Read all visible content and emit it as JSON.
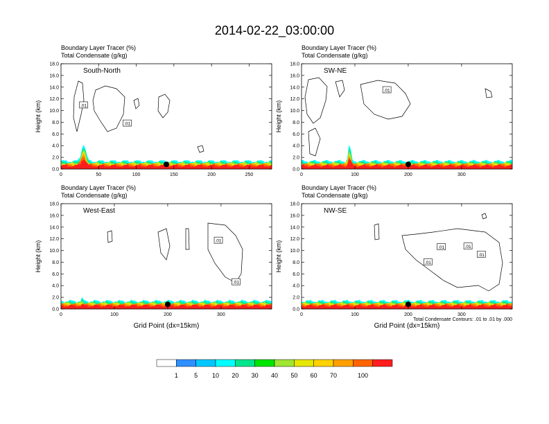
{
  "title": "2014-02-22_03:00:00",
  "colors": {
    "levels": [
      "#ffffff",
      "#2f8fff",
      "#00c8ff",
      "#00ffff",
      "#00e68c",
      "#00e600",
      "#a0e632",
      "#e6e600",
      "#ffd200",
      "#ffa000",
      "#ff6400",
      "#ff1e1e"
    ]
  },
  "footnote": "Total Condensate Contours: .01 to .01 by .000",
  "colorbar": {
    "labels": [
      "1",
      "5",
      "10",
      "20",
      "30",
      "40",
      "50",
      "60",
      "70",
      "100"
    ]
  },
  "chart_data": [
    {
      "type": "heatmap",
      "panel_label": "South-North",
      "title_line1": "Boundary Layer Tracer   (%)",
      "title_line2": "Total Condensate   (g/kg)",
      "ylabel": "Height (km)",
      "xlabel": "",
      "yticks": [
        "0.0",
        "2.0",
        "4.0",
        "6.0",
        "8.0",
        "10.0",
        "12.0",
        "14.0",
        "16.0",
        "18.0"
      ],
      "ylim": [
        0,
        18
      ],
      "xticks": [
        {
          "v": 0,
          "label": "0"
        },
        {
          "v": 50,
          "label": "50"
        },
        {
          "v": 100,
          "label": "100"
        },
        {
          "v": 150,
          "label": "150"
        },
        {
          "v": 200,
          "label": "200"
        },
        {
          "v": 250,
          "label": "250"
        }
      ],
      "xlim": [
        0,
        280
      ],
      "contour_labels": [
        {
          "x": 30,
          "y": 10.9,
          "label": ".01"
        },
        {
          "x": 88,
          "y": 7.8,
          "label": ".01"
        }
      ],
      "marker_x": 140,
      "marker_y": 0.8
    },
    {
      "type": "heatmap",
      "panel_label": "SW-NE",
      "title_line1": "Boundary Layer Tracer   (%)",
      "title_line2": "Total Condensate   (g/kg)",
      "ylabel": "Height (km)",
      "xlabel": "",
      "yticks": [
        "0.0",
        "2.0",
        "4.0",
        "6.0",
        "8.0",
        "10.0",
        "12.0",
        "14.0",
        "16.0",
        "18.0"
      ],
      "ylim": [
        0,
        18
      ],
      "xticks": [
        {
          "v": 0,
          "label": "0"
        },
        {
          "v": 100,
          "label": "100"
        },
        {
          "v": 200,
          "label": "200"
        },
        {
          "v": 300,
          "label": "300"
        }
      ],
      "xlim": [
        0,
        395
      ],
      "contour_labels": [
        {
          "x": 160,
          "y": 13.5,
          "label": ".01"
        }
      ],
      "marker_x": 200,
      "marker_y": 0.8
    },
    {
      "type": "heatmap",
      "panel_label": "West-East",
      "title_line1": "Boundary Layer Tracer   (%)",
      "title_line2": "Total Condensate   (g/kg)",
      "ylabel": "Height (km)",
      "xlabel": "Grid Point (dx=15km)",
      "yticks": [
        "0.0",
        "2.0",
        "4.0",
        "6.0",
        "8.0",
        "10.0",
        "12.0",
        "14.0",
        "16.0",
        "18.0"
      ],
      "ylim": [
        0,
        18
      ],
      "xticks": [
        {
          "v": 0,
          "label": "0"
        },
        {
          "v": 100,
          "label": "100"
        },
        {
          "v": 200,
          "label": "200"
        },
        {
          "v": 300,
          "label": "300"
        }
      ],
      "xlim": [
        0,
        395
      ],
      "contour_labels": [
        {
          "x": 295,
          "y": 11.7,
          "label": ".01"
        },
        {
          "x": 328,
          "y": 4.6,
          "label": ".01"
        }
      ],
      "marker_x": 200,
      "marker_y": 0.8
    },
    {
      "type": "heatmap",
      "panel_label": "NW-SE",
      "title_line1": "Boundary Layer Tracer   (%)",
      "title_line2": "Total Condensate   (g/kg)",
      "ylabel": "Height (km)",
      "xlabel": "Grid Point (dx=15km)",
      "yticks": [
        "0.0",
        "2.0",
        "4.0",
        "6.0",
        "8.0",
        "10.0",
        "12.0",
        "14.0",
        "16.0",
        "18.0"
      ],
      "ylim": [
        0,
        18
      ],
      "xticks": [
        {
          "v": 0,
          "label": "0"
        },
        {
          "v": 100,
          "label": "100"
        },
        {
          "v": 200,
          "label": "200"
        },
        {
          "v": 300,
          "label": "300"
        }
      ],
      "xlim": [
        0,
        395
      ],
      "contour_labels": [
        {
          "x": 262,
          "y": 10.6,
          "label": ".01"
        },
        {
          "x": 312,
          "y": 10.7,
          "label": ".01"
        },
        {
          "x": 237,
          "y": 8.0,
          "label": ".01"
        },
        {
          "x": 337,
          "y": 9.3,
          "label": ".01"
        }
      ],
      "marker_x": 200,
      "marker_y": 0.8
    }
  ]
}
